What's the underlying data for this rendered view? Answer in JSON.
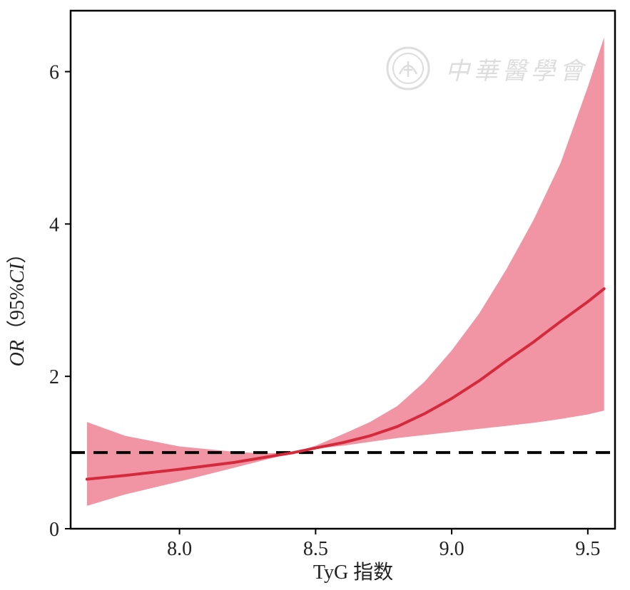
{
  "chart_data": {
    "type": "line",
    "xlabel": "TyG 指数",
    "ylabel_parts": [
      "OR",
      "（95%",
      "CI",
      "）"
    ],
    "xlim": [
      7.6,
      9.6
    ],
    "ylim": [
      0,
      6.8
    ],
    "x_ticks": [
      8.0,
      8.5,
      9.0,
      9.5
    ],
    "x_tick_labels": [
      "8.0",
      "8.5",
      "9.0",
      "9.5"
    ],
    "y_ticks": [
      0,
      2,
      4,
      6
    ],
    "y_tick_labels": [
      "0",
      "2",
      "4",
      "6"
    ],
    "reference_line": 1.0,
    "grid": false,
    "legend": "none",
    "series": [
      {
        "x": [
          7.66,
          7.8,
          8.0,
          8.2,
          8.3,
          8.42,
          8.5,
          8.6,
          8.7,
          8.8,
          8.9,
          9.0,
          9.1,
          9.2,
          9.3,
          9.4,
          9.5,
          9.56
        ],
        "values": [
          0.65,
          0.7,
          0.78,
          0.87,
          0.93,
          1.0,
          1.06,
          1.13,
          1.22,
          1.34,
          1.51,
          1.71,
          1.94,
          2.2,
          2.45,
          2.72,
          2.98,
          3.15
        ],
        "ci_lower": [
          0.3,
          0.45,
          0.62,
          0.8,
          0.89,
          1.0,
          1.05,
          1.09,
          1.14,
          1.19,
          1.23,
          1.27,
          1.31,
          1.35,
          1.39,
          1.44,
          1.5,
          1.55
        ],
        "ci_upper": [
          1.4,
          1.22,
          1.08,
          1.01,
          0.99,
          1.0,
          1.09,
          1.24,
          1.4,
          1.61,
          1.93,
          2.34,
          2.82,
          3.4,
          4.05,
          4.8,
          5.8,
          6.45
        ]
      }
    ],
    "colors": {
      "line": "#d42a3b",
      "band": "#f08a9a",
      "reference": "#000000",
      "axis": "#000000"
    }
  },
  "watermark": {
    "text": "中華醫學會"
  }
}
